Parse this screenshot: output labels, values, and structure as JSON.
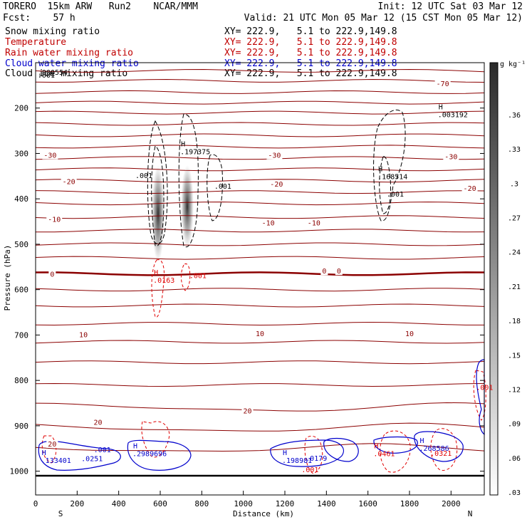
{
  "header": {
    "model_line": "TORERO  15km ARW   Run2    NCAR/MMM",
    "init_line": "Init: 12 UTC Sat 03 Mar 12",
    "fcst_line": "Fcst:    57 h",
    "valid_line": "Valid: 21 UTC Mon 05 Mar 12 (15 CST Mon 05 Mar 12)"
  },
  "legend": [
    {
      "field": "Snow mixing ratio",
      "xy": "XY= 222.9,   5.1 to 222.9,149.8",
      "color": "#000000"
    },
    {
      "field": "Temperature",
      "xy": "XY= 222.9,   5.1 to 222.9,149.8",
      "color": "#c00000"
    },
    {
      "field": "Rain water mixing ratio",
      "xy": "XY= 222.9,   5.1 to 222.9,149.8",
      "color": "#c00000"
    },
    {
      "field": "Cloud water mixing ratio",
      "xy": "XY= 222.9,   5.1 to 222.9,149.8",
      "color": "#0000cc"
    },
    {
      "field": "Cloud ice mixing ratio",
      "xy": "XY= 222.9,   5.1 to 222.9,149.8",
      "color": "#000000"
    }
  ],
  "colors": {
    "temperature": "#8b0000",
    "rain": "#e00000",
    "cloud_water": "#0000cc",
    "ice": "#000000",
    "snow_shade": "#555555"
  },
  "chart_data": {
    "type": "cross-section contour",
    "xlabel": "Distance (km)",
    "ylabel": "Pressure (hPa)",
    "xlim": [
      0,
      2160
    ],
    "ylim": [
      1010,
      100
    ],
    "xticks": [
      0,
      200,
      400,
      600,
      800,
      1000,
      1200,
      1400,
      1600,
      1800,
      2000
    ],
    "yticks": [
      200,
      300,
      400,
      500,
      600,
      700,
      800,
      900,
      1000
    ],
    "endpoint_left": "S",
    "endpoint_right": "N",
    "colorbar": {
      "unit": "g kg⁻¹",
      "ticks": [
        ".36",
        ".33",
        ".3",
        ".27",
        ".24",
        ".21",
        ".18",
        ".15",
        ".12",
        ".09",
        ".06",
        ".03"
      ]
    },
    "temperature_labels": [
      {
        "text": "-70",
        "x": 1960,
        "p": 147
      },
      {
        "text": "-30",
        "x": 70,
        "p": 305
      },
      {
        "text": "-30",
        "x": 1150,
        "p": 305
      },
      {
        "text": "-30",
        "x": 2000,
        "p": 308
      },
      {
        "text": "-20",
        "x": 160,
        "p": 363
      },
      {
        "text": "-20",
        "x": 1160,
        "p": 368
      },
      {
        "text": "-20",
        "x": 2090,
        "p": 378
      },
      {
        "text": "-10",
        "x": 90,
        "p": 446
      },
      {
        "text": "-10",
        "x": 1120,
        "p": 454
      },
      {
        "text": "-10",
        "x": 1340,
        "p": 454
      },
      {
        "text": "0",
        "x": 80,
        "p": 567
      },
      {
        "text": "0",
        "x": 1390,
        "p": 560
      },
      {
        "text": "0",
        "x": 1460,
        "p": 560
      },
      {
        "text": "10",
        "x": 230,
        "p": 700
      },
      {
        "text": "10",
        "x": 1080,
        "p": 698
      },
      {
        "text": "10",
        "x": 1800,
        "p": 698
      },
      {
        "text": "20",
        "x": 300,
        "p": 893
      },
      {
        "text": "20",
        "x": 1020,
        "p": 868
      },
      {
        "text": "20",
        "x": 80,
        "p": 941
      }
    ],
    "max_labels": [
      {
        "mark": "H",
        "value": ".197375",
        "x": 710,
        "p": 297,
        "color": "#000000"
      },
      {
        "mark": "H",
        "value": ".168514",
        "x": 1660,
        "p": 352,
        "color": "#000000"
      },
      {
        "mark": "H",
        "value": ".003192",
        "x": 1950,
        "p": 215,
        "color": "#000000"
      },
      {
        "mark": "H",
        "value": ".0163",
        "x": 580,
        "p": 580,
        "color": "#e00000"
      },
      {
        "mark": "H",
        "value": ".2989696",
        "x": 480,
        "p": 962,
        "color": "#0000cc"
      },
      {
        "mark": "H",
        "value": ".133401",
        "x": 40,
        "p": 977,
        "color": "#0000cc"
      },
      {
        "mark": "H",
        "value": ".198981",
        "x": 1200,
        "p": 977,
        "color": "#0000cc"
      },
      {
        "mark": "H",
        "value": ".268586",
        "x": 1860,
        "p": 950,
        "color": "#0000cc"
      },
      {
        "mark": "H",
        "value": ".0461",
        "x": 1640,
        "p": 962,
        "color": "#e00000"
      }
    ],
    "value_labels": [
      {
        "text": ".001",
        "x": 480,
        "p": 354,
        "color": "#000000"
      },
      {
        "text": ".001",
        "x": 860,
        "p": 378,
        "color": "#000000"
      },
      {
        "text": ".001",
        "x": 1690,
        "p": 395,
        "color": "#000000"
      },
      {
        "text": ".001",
        "x": 740,
        "p": 575,
        "color": "#e00000"
      },
      {
        "text": ".001",
        "x": 10,
        "p": 133,
        "color": "#000000"
      },
      {
        "text": ".000554",
        "x": 10,
        "p": 127,
        "color": "#000000"
      },
      {
        "text": ".001",
        "x": 280,
        "p": 958,
        "color": "#0000cc"
      },
      {
        "text": ".0251",
        "x": 220,
        "p": 978,
        "color": "#0000cc"
      },
      {
        "text": ".0179",
        "x": 1300,
        "p": 977,
        "color": "#0000cc"
      },
      {
        "text": ".0321",
        "x": 1900,
        "p": 966,
        "color": "#e00000"
      },
      {
        "text": ".001",
        "x": 1280,
        "p": 1002,
        "color": "#e00000"
      },
      {
        "text": ".001",
        "x": 2120,
        "p": 821,
        "color": "#e00000"
      }
    ]
  }
}
